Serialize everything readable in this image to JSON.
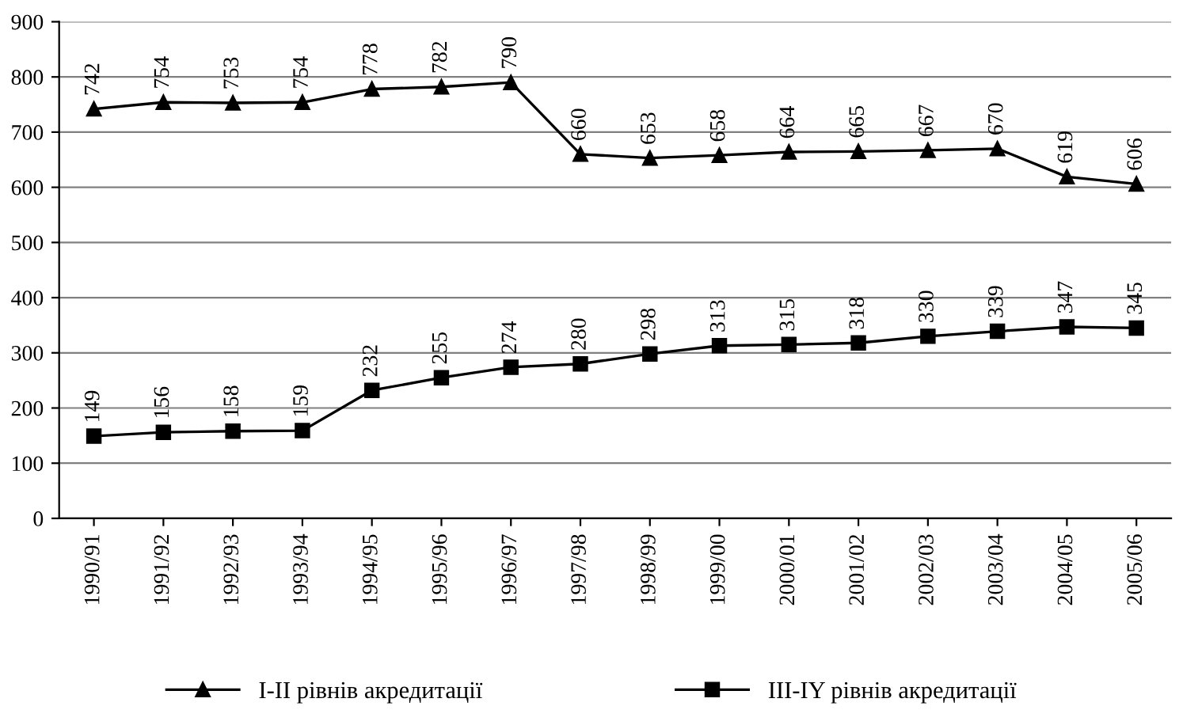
{
  "chart_data": {
    "type": "line",
    "categories": [
      "1990/91",
      "1991/92",
      "1992/93",
      "1993/94",
      "1994/95",
      "1995/96",
      "1996/97",
      "1997/98",
      "1998/99",
      "1999/00",
      "2000/01",
      "2001/02",
      "2002/03",
      "2003/04",
      "2004/05",
      "2005/06"
    ],
    "series": [
      {
        "name": "I-II рівнів акредитації",
        "color": "#000000",
        "marker": "triangle",
        "values": [
          742,
          754,
          753,
          754,
          778,
          782,
          790,
          660,
          653,
          658,
          664,
          665,
          667,
          670,
          619,
          606
        ]
      },
      {
        "name": "III-IY рівнів акредитації",
        "color": "#000000",
        "marker": "square",
        "values": [
          149,
          156,
          158,
          159,
          232,
          255,
          274,
          280,
          298,
          313,
          315,
          318,
          330,
          339,
          347,
          345
        ]
      }
    ],
    "ylim": [
      0,
      900
    ],
    "yticks": [
      0,
      100,
      200,
      300,
      400,
      500,
      600,
      700,
      800,
      900
    ],
    "grid": "y",
    "legend": "bottom",
    "data_labels": true,
    "line_style": "solid"
  }
}
